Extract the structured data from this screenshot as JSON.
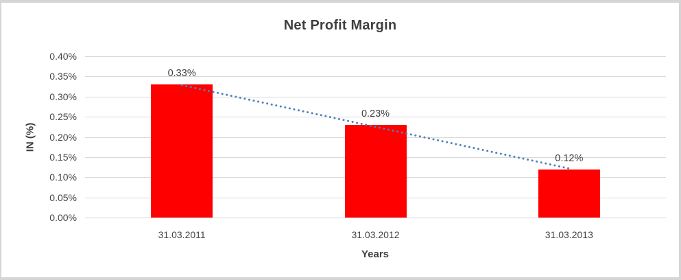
{
  "chart_data": {
    "type": "bar",
    "title": "Net Profit Margin",
    "xlabel": "Years",
    "ylabel": "IN (%)",
    "categories": [
      "31.03.2011",
      "31.03.2012",
      "31.03.2013"
    ],
    "values": [
      0.33,
      0.23,
      0.12
    ],
    "data_labels": [
      "0.33%",
      "0.23%",
      "0.12%"
    ],
    "ylim": [
      0,
      0.4
    ],
    "ytick_step": 0.05,
    "yticks": [
      "0.40%",
      "0.35%",
      "0.30%",
      "0.25%",
      "0.20%",
      "0.15%",
      "0.10%",
      "0.05%",
      "0.00%"
    ],
    "grid": "horizontal-only",
    "legend": "none",
    "trendline": {
      "style": "dotted",
      "from_category": "31.03.2011",
      "to_category": "31.03.2013"
    },
    "colors": {
      "bar": "#ff0000",
      "trendline": "#4e81bd",
      "gridline": "#d9d9d9",
      "text": "#404040"
    }
  }
}
